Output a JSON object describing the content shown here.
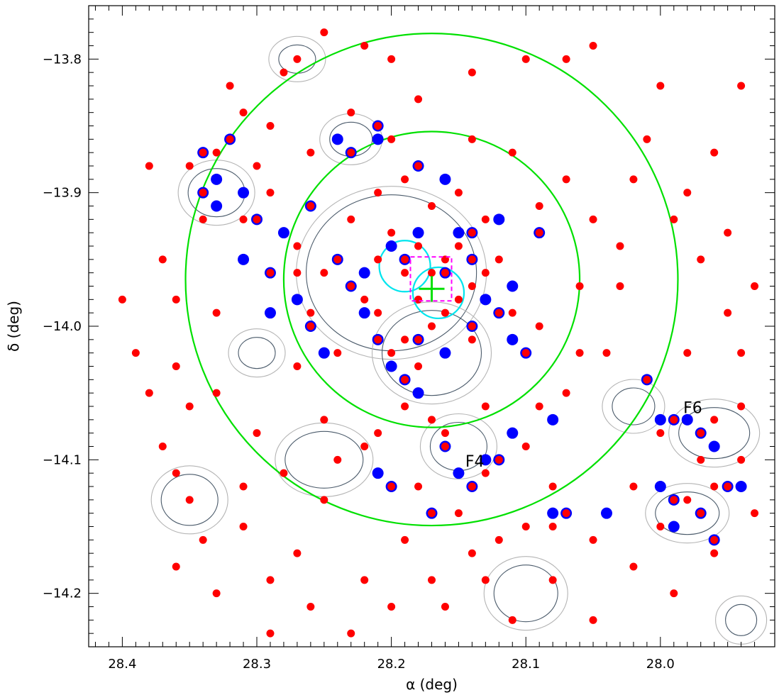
{
  "chart_data": {
    "type": "scatter",
    "xlabel": "α (deg)",
    "ylabel": "δ (deg)",
    "xlim": [
      28.425,
      27.915
    ],
    "ylim": [
      -14.24,
      -13.76
    ],
    "x_ticks": [
      28.4,
      28.3,
      28.2,
      28.1,
      28.0
    ],
    "x_tick_labels": [
      "28.4",
      "28.3",
      "28.2",
      "28.1",
      "28.0"
    ],
    "y_ticks": [
      -13.8,
      -13.9,
      -14.0,
      -14.1,
      -14.2
    ],
    "y_tick_labels": [
      "−13.8",
      "−13.9",
      "−14.0",
      "−14.1",
      "−14.2"
    ],
    "grid": false,
    "legend": "none",
    "colors": {
      "red_points": "#ff0000",
      "blue_points": "#0000ff",
      "green_circles": "#00e000",
      "cyan_circles": "#00e5ee",
      "magenta_box": "#ff00ff",
      "contour_light": "#b4b4b4",
      "contour_dark": "#4a5a6a"
    },
    "circles": [
      {
        "center": [
          28.17,
          -13.965
        ],
        "radius_deg": 0.183,
        "color": "green"
      },
      {
        "center": [
          28.17,
          -13.965
        ],
        "radius_deg": 0.11,
        "color": "green"
      },
      {
        "center": [
          28.19,
          -13.955
        ],
        "radius_deg": 0.019,
        "color": "cyan"
      },
      {
        "center": [
          28.165,
          -13.975
        ],
        "radius_deg": 0.019,
        "color": "cyan"
      }
    ],
    "center_marker": {
      "center": [
        28.17,
        -13.972
      ],
      "color": "green",
      "shape": "plus"
    },
    "annotations": [
      {
        "text": "F4",
        "x": 28.145,
        "y": -14.105
      },
      {
        "text": "F6",
        "x": 27.983,
        "y": -14.065
      }
    ],
    "series": [
      {
        "color": "red",
        "points": [
          [
            28.4,
            -13.98
          ],
          [
            28.38,
            -13.88
          ],
          [
            28.37,
            -13.95
          ],
          [
            28.36,
            -14.03
          ],
          [
            28.35,
            -14.06
          ],
          [
            28.34,
            -13.92
          ],
          [
            28.33,
            -13.99
          ],
          [
            28.31,
            -13.84
          ],
          [
            28.3,
            -13.88
          ],
          [
            28.28,
            -13.81
          ],
          [
            28.27,
            -13.8
          ],
          [
            28.25,
            -13.78
          ],
          [
            28.22,
            -13.79
          ],
          [
            28.2,
            -13.8
          ],
          [
            28.18,
            -13.83
          ],
          [
            28.14,
            -13.81
          ],
          [
            28.1,
            -13.8
          ],
          [
            28.07,
            -13.8
          ],
          [
            28.05,
            -13.79
          ],
          [
            28.0,
            -13.82
          ],
          [
            28.38,
            -14.05
          ],
          [
            28.36,
            -14.11
          ],
          [
            28.34,
            -14.16
          ],
          [
            28.31,
            -14.12
          ],
          [
            28.29,
            -14.19
          ],
          [
            28.27,
            -14.17
          ],
          [
            28.25,
            -14.13
          ],
          [
            28.22,
            -14.19
          ],
          [
            28.19,
            -14.16
          ],
          [
            28.16,
            -14.21
          ],
          [
            28.13,
            -14.19
          ],
          [
            28.11,
            -14.22
          ],
          [
            28.08,
            -14.15
          ],
          [
            28.05,
            -14.22
          ],
          [
            28.02,
            -14.18
          ],
          [
            27.99,
            -14.2
          ],
          [
            27.96,
            -14.17
          ],
          [
            27.93,
            -14.14
          ],
          [
            28.33,
            -14.05
          ],
          [
            28.3,
            -14.08
          ],
          [
            28.27,
            -14.03
          ],
          [
            28.25,
            -14.07
          ],
          [
            28.22,
            -14.09
          ],
          [
            28.19,
            -14.06
          ],
          [
            28.16,
            -14.08
          ],
          [
            28.13,
            -14.11
          ],
          [
            28.1,
            -14.09
          ],
          [
            28.07,
            -14.05
          ],
          [
            28.04,
            -14.02
          ],
          [
            28.01,
            -14.04
          ],
          [
            27.98,
            -14.02
          ],
          [
            27.96,
            -14.07
          ],
          [
            27.94,
            -14.06
          ],
          [
            27.95,
            -13.99
          ],
          [
            27.97,
            -13.95
          ],
          [
            27.99,
            -13.92
          ],
          [
            28.02,
            -13.89
          ],
          [
            28.03,
            -13.94
          ],
          [
            28.06,
            -13.97
          ],
          [
            28.09,
            -14.0
          ],
          [
            28.33,
            -13.87
          ],
          [
            28.31,
            -13.92
          ],
          [
            28.29,
            -13.9
          ],
          [
            28.27,
            -13.94
          ],
          [
            28.25,
            -13.96
          ],
          [
            28.23,
            -13.97
          ],
          [
            28.21,
            -13.99
          ],
          [
            28.19,
            -14.01
          ],
          [
            28.17,
            -14.0
          ],
          [
            28.15,
            -13.98
          ],
          [
            28.2,
            -13.93
          ],
          [
            28.18,
            -13.94
          ],
          [
            28.17,
            -13.96
          ],
          [
            28.16,
            -13.95
          ],
          [
            28.15,
            -13.94
          ],
          [
            28.19,
            -13.96
          ],
          [
            28.18,
            -13.98
          ],
          [
            28.16,
            -13.99
          ],
          [
            28.14,
            -13.97
          ],
          [
            28.13,
            -13.96
          ],
          [
            28.21,
            -13.95
          ],
          [
            28.22,
            -13.98
          ],
          [
            28.2,
            -14.02
          ],
          [
            28.18,
            -14.03
          ],
          [
            28.16,
            -14.02
          ],
          [
            28.14,
            -14.01
          ],
          [
            28.23,
            -13.92
          ],
          [
            28.21,
            -13.9
          ],
          [
            28.19,
            -13.89
          ],
          [
            28.17,
            -13.91
          ],
          [
            28.15,
            -13.9
          ],
          [
            28.13,
            -13.92
          ],
          [
            28.12,
            -13.95
          ],
          [
            28.11,
            -13.99
          ],
          [
            28.24,
            -14.02
          ],
          [
            28.26,
            -13.99
          ],
          [
            28.27,
            -13.96
          ],
          [
            28.2,
            -13.86
          ],
          [
            28.23,
            -13.84
          ],
          [
            28.14,
            -13.86
          ],
          [
            28.11,
            -13.87
          ],
          [
            28.09,
            -13.91
          ],
          [
            28.07,
            -13.89
          ],
          [
            28.05,
            -13.92
          ],
          [
            28.03,
            -13.97
          ],
          [
            28.06,
            -14.02
          ],
          [
            28.09,
            -14.06
          ],
          [
            28.13,
            -14.06
          ],
          [
            28.17,
            -14.07
          ],
          [
            28.21,
            -14.08
          ],
          [
            28.24,
            -14.1
          ],
          [
            28.28,
            -14.11
          ],
          [
            28.31,
            -14.15
          ],
          [
            28.35,
            -14.13
          ],
          [
            28.37,
            -14.09
          ],
          [
            28.39,
            -14.02
          ],
          [
            28.36,
            -13.98
          ],
          [
            28.35,
            -13.88
          ],
          [
            28.32,
            -13.82
          ],
          [
            28.29,
            -13.85
          ],
          [
            28.26,
            -13.87
          ],
          [
            28.18,
            -14.12
          ],
          [
            28.15,
            -14.14
          ],
          [
            28.12,
            -14.16
          ],
          [
            28.08,
            -14.19
          ],
          [
            28.05,
            -14.16
          ],
          [
            28.02,
            -14.12
          ],
          [
            28.0,
            -14.08
          ],
          [
            27.97,
            -14.1
          ],
          [
            27.94,
            -14.1
          ],
          [
            28.0,
            -14.15
          ],
          [
            27.98,
            -14.13
          ],
          [
            27.96,
            -14.12
          ],
          [
            28.08,
            -14.12
          ],
          [
            28.1,
            -14.15
          ],
          [
            28.14,
            -14.17
          ],
          [
            28.17,
            -14.19
          ],
          [
            28.2,
            -14.21
          ],
          [
            28.23,
            -14.23
          ],
          [
            28.26,
            -14.21
          ],
          [
            28.29,
            -14.23
          ],
          [
            28.33,
            -14.2
          ],
          [
            28.36,
            -14.18
          ],
          [
            27.94,
            -13.82
          ],
          [
            27.96,
            -13.87
          ],
          [
            28.01,
            -13.86
          ],
          [
            27.98,
            -13.9
          ],
          [
            27.95,
            -13.93
          ],
          [
            27.93,
            -13.97
          ],
          [
            27.94,
            -14.02
          ]
        ]
      },
      {
        "color": "blue",
        "points": [
          [
            28.34,
            -13.87
          ],
          [
            28.33,
            -13.89
          ],
          [
            28.32,
            -13.86
          ],
          [
            28.31,
            -13.9
          ],
          [
            28.34,
            -13.9
          ],
          [
            28.33,
            -13.91
          ],
          [
            28.3,
            -13.92
          ],
          [
            28.28,
            -13.93
          ],
          [
            28.29,
            -13.96
          ],
          [
            28.27,
            -13.98
          ],
          [
            28.26,
            -14.0
          ],
          [
            28.25,
            -14.02
          ],
          [
            28.23,
            -13.97
          ],
          [
            28.22,
            -13.99
          ],
          [
            28.24,
            -13.95
          ],
          [
            28.2,
            -13.94
          ],
          [
            28.19,
            -13.95
          ],
          [
            28.18,
            -13.93
          ],
          [
            28.16,
            -13.96
          ],
          [
            28.15,
            -13.93
          ],
          [
            28.14,
            -13.95
          ],
          [
            28.13,
            -13.98
          ],
          [
            28.12,
            -13.99
          ],
          [
            28.11,
            -13.97
          ],
          [
            28.14,
            -14.0
          ],
          [
            28.16,
            -14.02
          ],
          [
            28.18,
            -14.01
          ],
          [
            28.2,
            -14.03
          ],
          [
            28.21,
            -14.01
          ],
          [
            28.22,
            -13.96
          ],
          [
            28.23,
            -13.87
          ],
          [
            28.21,
            -13.86
          ],
          [
            28.18,
            -13.88
          ],
          [
            28.16,
            -13.89
          ],
          [
            28.14,
            -13.93
          ],
          [
            28.12,
            -13.92
          ],
          [
            28.09,
            -13.93
          ],
          [
            28.11,
            -14.01
          ],
          [
            28.1,
            -14.02
          ],
          [
            28.08,
            -14.07
          ],
          [
            28.19,
            -14.04
          ],
          [
            28.18,
            -14.05
          ],
          [
            28.16,
            -14.09
          ],
          [
            28.15,
            -14.11
          ],
          [
            28.14,
            -14.12
          ],
          [
            28.13,
            -14.1
          ],
          [
            28.12,
            -14.1
          ],
          [
            28.11,
            -14.08
          ],
          [
            28.2,
            -14.12
          ],
          [
            28.21,
            -14.11
          ],
          [
            28.17,
            -14.14
          ],
          [
            28.08,
            -14.14
          ],
          [
            28.07,
            -14.14
          ],
          [
            28.04,
            -14.14
          ],
          [
            28.01,
            -14.04
          ],
          [
            28.0,
            -14.07
          ],
          [
            27.99,
            -14.07
          ],
          [
            27.98,
            -14.07
          ],
          [
            27.97,
            -14.08
          ],
          [
            27.96,
            -14.09
          ],
          [
            27.95,
            -14.12
          ],
          [
            27.94,
            -14.12
          ],
          [
            27.97,
            -14.14
          ],
          [
            27.99,
            -14.15
          ],
          [
            27.96,
            -14.16
          ],
          [
            28.0,
            -14.12
          ],
          [
            27.99,
            -14.13
          ],
          [
            28.31,
            -13.95
          ],
          [
            28.26,
            -13.91
          ],
          [
            28.29,
            -13.99
          ],
          [
            28.21,
            -13.85
          ],
          [
            28.24,
            -13.86
          ]
        ]
      }
    ]
  }
}
